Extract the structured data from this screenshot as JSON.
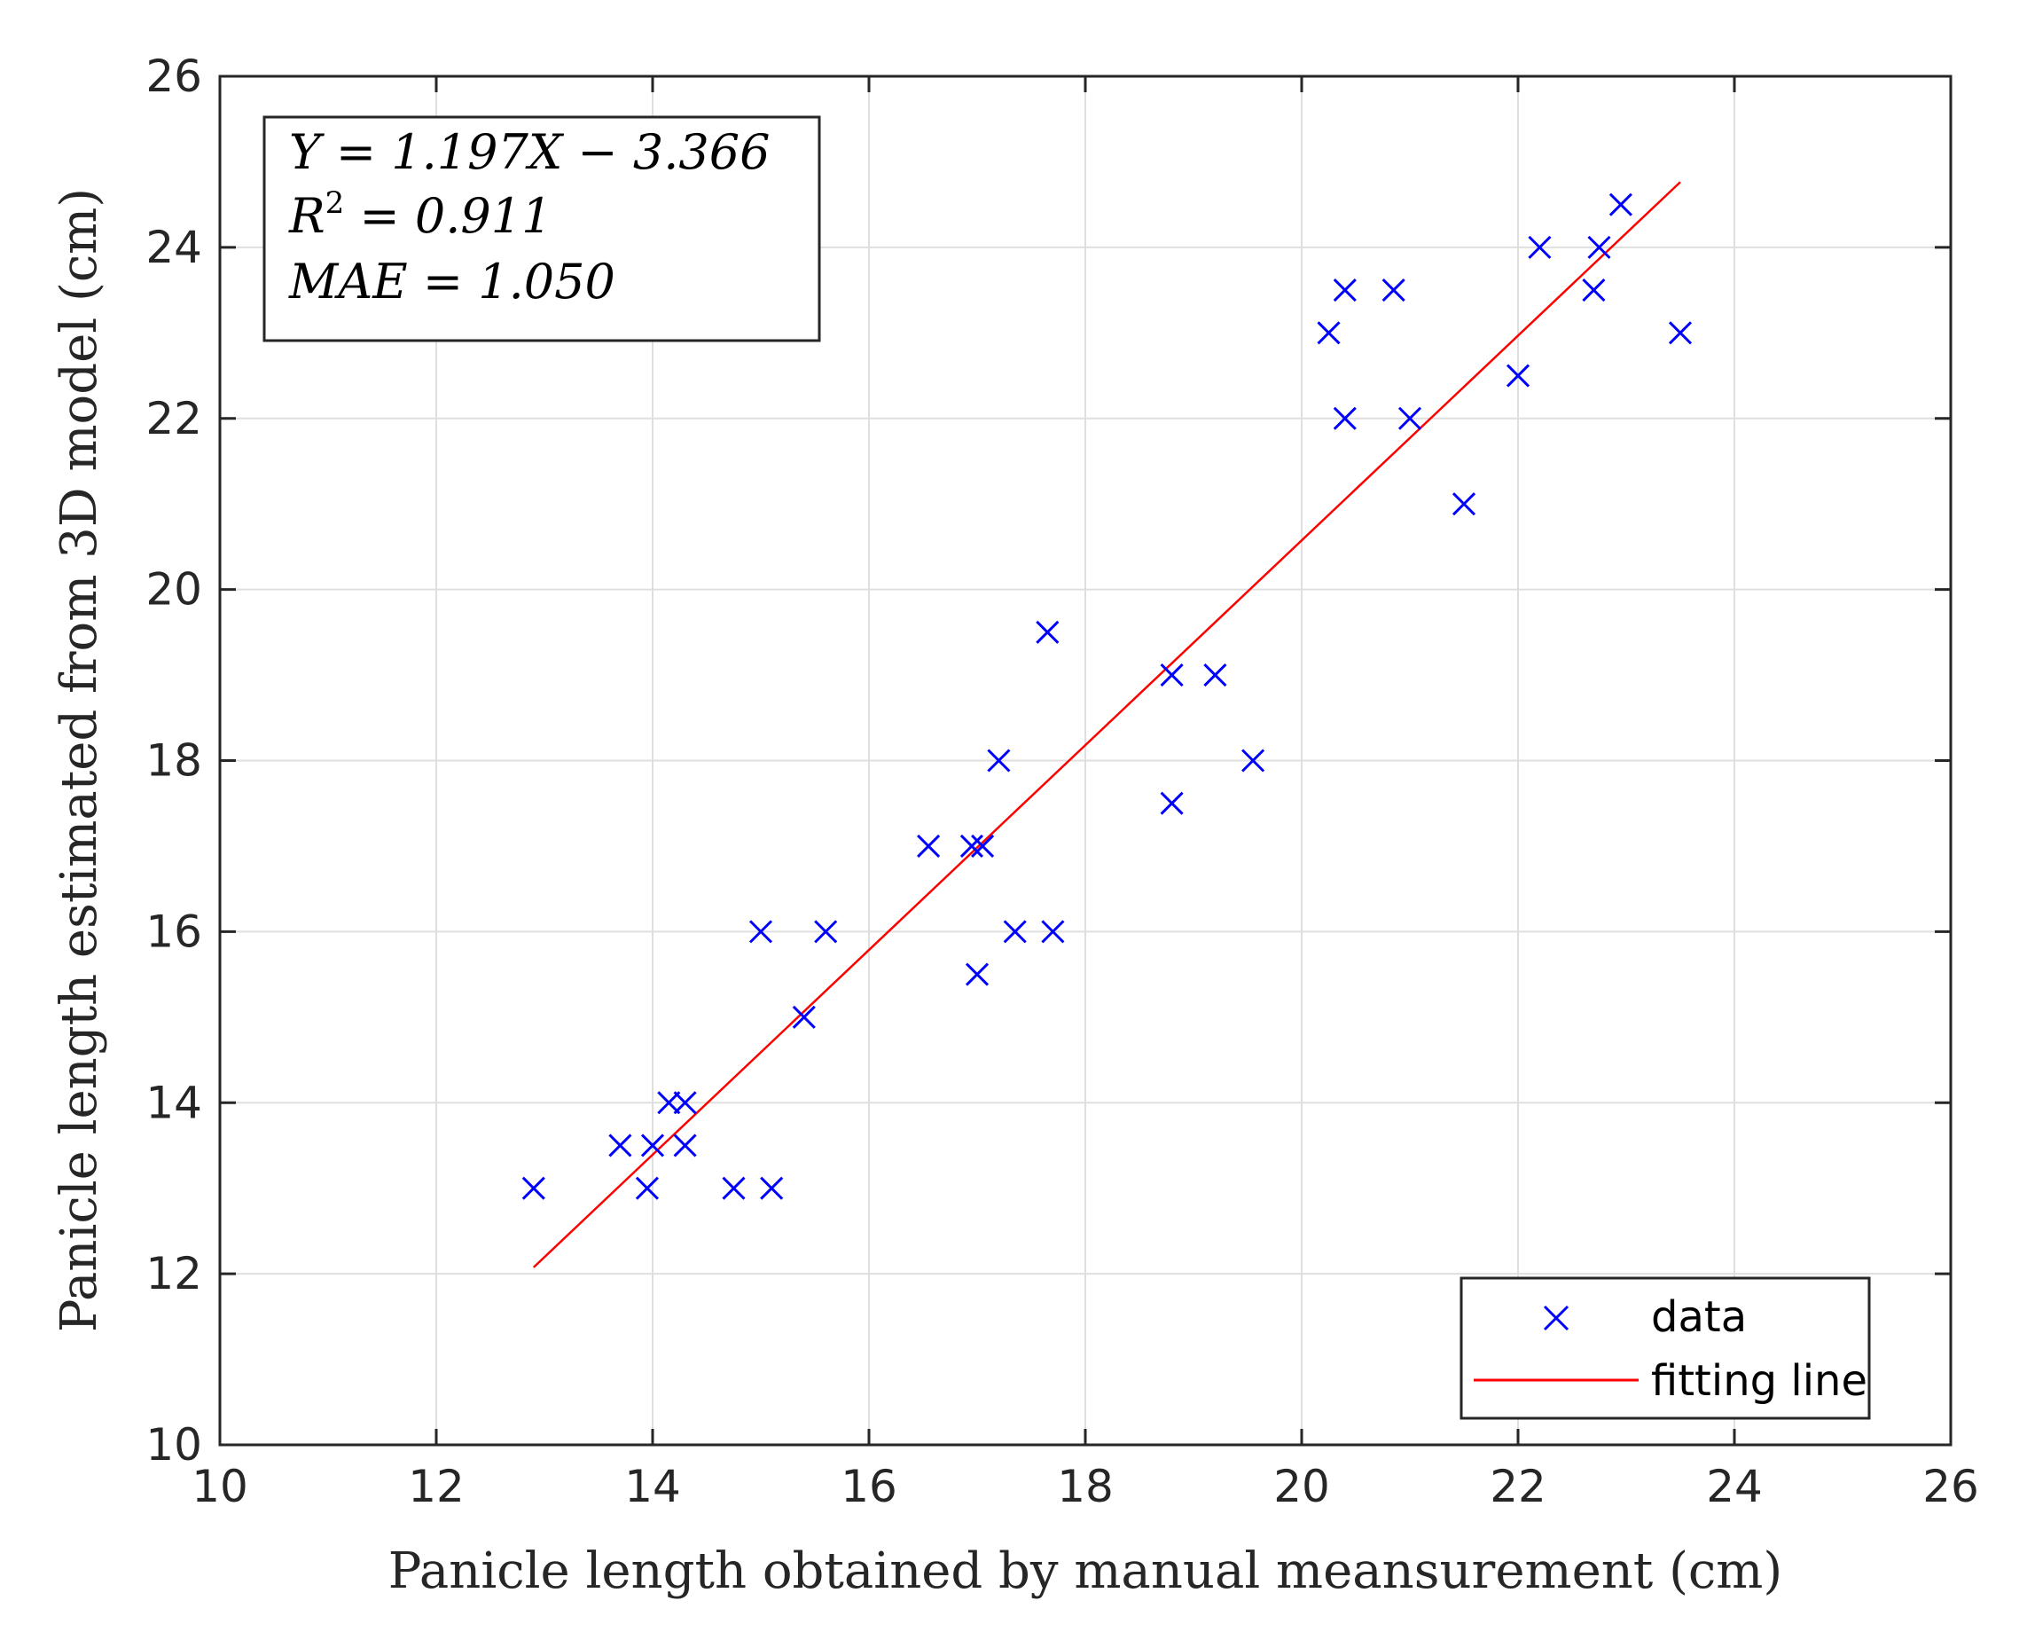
{
  "chart_data": {
    "type": "scatter",
    "title": "",
    "xlabel": "Panicle length obtained by manual meansurement (cm)",
    "ylabel": "Panicle length estimated from 3D model (cm)",
    "xlim": [
      10,
      26
    ],
    "ylim": [
      10,
      26
    ],
    "xticks": [
      10,
      12,
      14,
      16,
      18,
      20,
      22,
      24,
      26
    ],
    "yticks": [
      10,
      12,
      14,
      16,
      18,
      20,
      22,
      24,
      26
    ],
    "grid": true,
    "colors": {
      "data": "#0000ff",
      "fit": "#ff0000",
      "axis": "#262626",
      "grid": "#dfdfdf"
    },
    "series": [
      {
        "name": "data",
        "marker": "x",
        "points": [
          [
            12.9,
            13.0
          ],
          [
            13.7,
            13.5
          ],
          [
            14.0,
            13.5
          ],
          [
            13.95,
            13.0
          ],
          [
            14.15,
            14.0
          ],
          [
            14.3,
            14.0
          ],
          [
            14.3,
            13.5
          ],
          [
            14.75,
            13.0
          ],
          [
            15.1,
            13.0
          ],
          [
            15.0,
            16.0
          ],
          [
            15.4,
            15.0
          ],
          [
            15.6,
            16.0
          ],
          [
            16.55,
            17.0
          ],
          [
            16.95,
            17.0
          ],
          [
            17.05,
            17.0
          ],
          [
            17.0,
            15.5
          ],
          [
            17.2,
            18.0
          ],
          [
            17.35,
            16.0
          ],
          [
            17.65,
            19.5
          ],
          [
            17.7,
            16.0
          ],
          [
            18.8,
            19.0
          ],
          [
            18.8,
            17.5
          ],
          [
            19.2,
            19.0
          ],
          [
            19.55,
            18.0
          ],
          [
            20.25,
            23.0
          ],
          [
            20.4,
            23.5
          ],
          [
            20.4,
            22.0
          ],
          [
            20.85,
            23.5
          ],
          [
            21.0,
            22.0
          ],
          [
            21.5,
            21.0
          ],
          [
            22.0,
            22.5
          ],
          [
            22.2,
            24.0
          ],
          [
            22.7,
            23.5
          ],
          [
            22.75,
            24.0
          ],
          [
            22.95,
            24.5
          ],
          [
            23.5,
            23.0
          ]
        ]
      },
      {
        "name": "fitting line",
        "type": "line",
        "slope": 1.197,
        "intercept": -3.366,
        "x_range": [
          12.9,
          23.5
        ]
      }
    ],
    "annotation": {
      "eq": "Y = 1.197X − 3.366",
      "r2_prefix": "R",
      "r2_suffix": " = 0.911",
      "mae": "MAE = 1.050"
    },
    "legend": {
      "position": "bottom-right",
      "entries": [
        "data",
        "fitting line"
      ]
    }
  }
}
